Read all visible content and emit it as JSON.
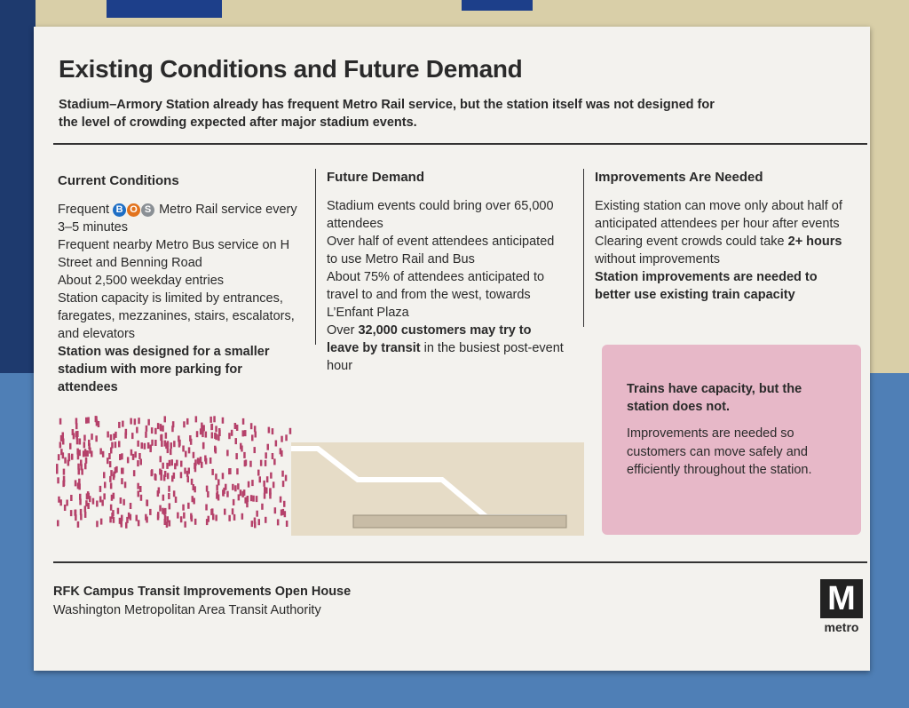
{
  "header": {
    "title": "Existing Conditions and Future Demand",
    "subtitle": "Stadium–Armory Station already has frequent Metro Rail service, but the station itself was not designed for the level of crowding expected after major stadium events."
  },
  "columns": [
    {
      "heading": "Current Conditions",
      "items": [
        {
          "parts": [
            {
              "text": "Frequent "
            },
            {
              "text": "B",
              "badge": "#1f6fc5"
            },
            {
              "text": "O",
              "badge": "#e2731d"
            },
            {
              "text": "S",
              "badge": "#8a9095"
            },
            {
              "text": " Metro Rail service every 3–5 minutes"
            }
          ]
        },
        {
          "parts": [
            {
              "text": "Frequent nearby Metro Bus service on H Street and Benning Road"
            }
          ]
        },
        {
          "parts": [
            {
              "text": "About 2,500 weekday entries"
            }
          ]
        },
        {
          "parts": [
            {
              "text": "Station capacity is limited by entrances, faregates, mezzanines, stairs, escalators, and elevators"
            }
          ]
        },
        {
          "parts": [
            {
              "text": "Station was designed for a smaller stadium with more parking for attendees",
              "bold": true
            }
          ]
        }
      ]
    },
    {
      "heading": "Future Demand",
      "items": [
        {
          "parts": [
            {
              "text": "Stadium events could bring over 65,000 attendees"
            }
          ]
        },
        {
          "parts": [
            {
              "text": "Over half of event attendees anticipated to use Metro Rail and Bus"
            }
          ]
        },
        {
          "parts": [
            {
              "text": "About 75% of attendees anticipated to travel to and from the west, towards L’Enfant Plaza"
            }
          ]
        },
        {
          "parts": [
            {
              "text": "Over "
            },
            {
              "text": "32,000 customers may try to leave by transit",
              "bold": true
            },
            {
              "text": " in the busiest post-event hour"
            }
          ]
        }
      ]
    },
    {
      "heading": "Improvements Are Needed",
      "items": [
        {
          "parts": [
            {
              "text": "Existing station can move only about half of anticipated attendees per hour after events"
            }
          ]
        },
        {
          "parts": [
            {
              "text": "Clearing event crowds could take "
            },
            {
              "text": "2+ hours",
              "bold": true
            },
            {
              "text": " without improvements"
            }
          ]
        },
        {
          "parts": [
            {
              "text": "Station improvements are needed to better use existing train capacity",
              "bold": true
            }
          ]
        }
      ]
    }
  ],
  "callout": {
    "heading": "Trains have capacity, but the station does not.",
    "body": "Improvements are needed so customers can move safely and efficiently throughout the station."
  },
  "footer": {
    "title": "RFK Campus Transit Improvements Open House",
    "organization": "Washington Metropolitan Area Transit Authority"
  },
  "logo": {
    "letter": "M",
    "text": "metro"
  }
}
